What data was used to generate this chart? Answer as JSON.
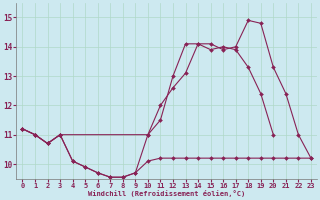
{
  "title": "",
  "xlabel": "Windchill (Refroidissement éolien,°C)",
  "background_color": "#cde9f0",
  "grid_color": "#b0d8c8",
  "line_color": "#882255",
  "xlim": [
    -0.5,
    23.5
  ],
  "ylim": [
    9.5,
    15.5
  ],
  "yticks": [
    10,
    11,
    12,
    13,
    14,
    15
  ],
  "ytick_labels": [
    "10",
    "11",
    "12",
    "13",
    "14",
    "15"
  ],
  "xticks": [
    0,
    1,
    2,
    3,
    4,
    5,
    6,
    7,
    8,
    9,
    10,
    11,
    12,
    13,
    14,
    15,
    16,
    17,
    18,
    19,
    20,
    21,
    22,
    23
  ],
  "line1_x": [
    0,
    1,
    2,
    3,
    4,
    5,
    6,
    7,
    8,
    9,
    10,
    11,
    12,
    13,
    14,
    15,
    16,
    17,
    18,
    19,
    20,
    21,
    22,
    23
  ],
  "line1_y": [
    11.2,
    11.0,
    10.7,
    11.0,
    10.1,
    9.9,
    9.7,
    9.55,
    9.55,
    9.7,
    10.1,
    10.2,
    10.2,
    10.2,
    10.2,
    10.2,
    10.2,
    10.2,
    10.2,
    10.2,
    10.2,
    10.2,
    10.2,
    10.2
  ],
  "line2_x": [
    0,
    1,
    2,
    3,
    4,
    5,
    6,
    7,
    8,
    9,
    10,
    11,
    12,
    13,
    14,
    15,
    16,
    17,
    18,
    19,
    20
  ],
  "line2_y": [
    11.2,
    11.0,
    10.7,
    11.0,
    10.1,
    9.9,
    9.7,
    9.55,
    9.55,
    9.7,
    11.0,
    11.5,
    13.0,
    14.1,
    14.1,
    13.9,
    14.0,
    13.9,
    13.3,
    12.4,
    11.0
  ],
  "line3_x": [
    0,
    1,
    2,
    3,
    10,
    11,
    12,
    13,
    14,
    15,
    16,
    17,
    18,
    19,
    20,
    21,
    22,
    23
  ],
  "line3_y": [
    11.2,
    11.0,
    10.7,
    11.0,
    11.0,
    12.0,
    12.6,
    13.1,
    14.1,
    14.1,
    13.9,
    14.0,
    14.9,
    14.8,
    13.3,
    12.4,
    11.0,
    10.2
  ]
}
